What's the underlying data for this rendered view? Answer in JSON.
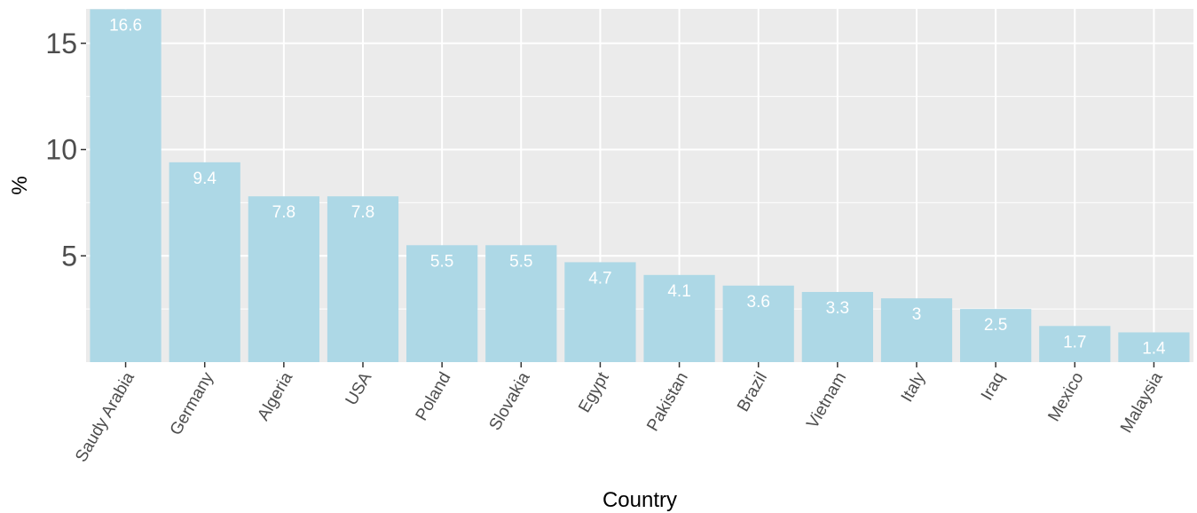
{
  "chart_data": {
    "type": "bar",
    "categories": [
      "Saudy Arabia",
      "Germany",
      "Algeria",
      "USA",
      "Poland",
      "Slovakia",
      "Egypt",
      "Pakistan",
      "Brazil",
      "Vietnam",
      "Italy",
      "Iraq",
      "Mexico",
      "Malaysia"
    ],
    "values": [
      16.6,
      9.4,
      7.8,
      7.8,
      5.5,
      5.5,
      4.7,
      4.1,
      3.6,
      3.3,
      3,
      2.5,
      1.7,
      1.4
    ],
    "data_labels": [
      "16.6",
      "9.4",
      "7.8",
      "7.8",
      "5.5",
      "5.5",
      "4.7",
      "4.1",
      "3.6",
      "3.3",
      "3",
      "2.5",
      "1.7",
      "1.4"
    ],
    "xlabel": "Country",
    "ylabel": "%",
    "yticks": [
      5,
      10,
      15
    ],
    "ylim": [
      0,
      16.6
    ],
    "grid": true,
    "colors": {
      "bar": "#add8e6",
      "panel": "#ebebeb",
      "grid": "#ffffff"
    }
  }
}
